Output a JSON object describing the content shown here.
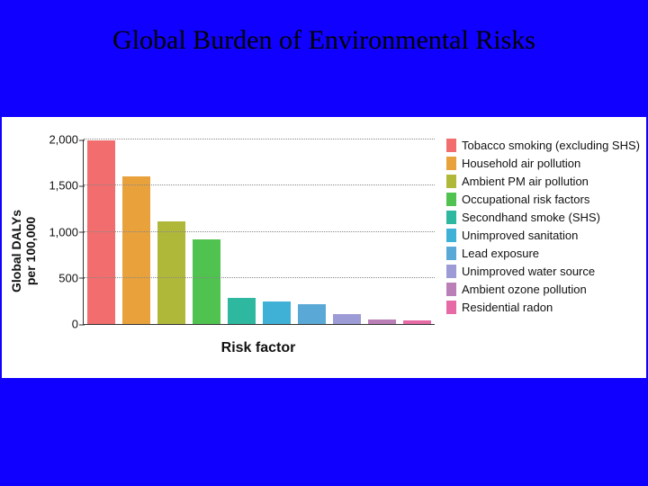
{
  "title": "Global Burden of Environmental Risks",
  "chart": {
    "type": "bar",
    "background_color": "#ffffff",
    "slide_background_color": "#1000ff",
    "ylabel": "Global DALYs\nper 100,000",
    "xlabel": "Risk factor",
    "label_fontsize": 14,
    "ylim": [
      0,
      2000
    ],
    "yticks": [
      0,
      500,
      1000,
      1500,
      2000
    ],
    "ytick_labels": [
      "0",
      "500",
      "1,000",
      "1,500",
      "2,000"
    ],
    "grid_color": "#888888",
    "axis_color": "#333333",
    "bar_width": 0.78,
    "series": [
      {
        "label": "Tobacco smoking (excluding SHS)",
        "value": 1990,
        "color": "#f26d6d"
      },
      {
        "label": "Household air pollution",
        "value": 1600,
        "color": "#e9a13b"
      },
      {
        "label": "Ambient PM air pollution",
        "value": 1110,
        "color": "#b0b83a"
      },
      {
        "label": "Occupational risk factors",
        "value": 920,
        "color": "#4fc24f"
      },
      {
        "label": "Secondhand smoke (SHS)",
        "value": 280,
        "color": "#2fb8a0"
      },
      {
        "label": "Unimproved sanitation",
        "value": 240,
        "color": "#3fb0d6"
      },
      {
        "label": "Lead exposure",
        "value": 210,
        "color": "#5aa8d6"
      },
      {
        "label": "Unimproved water source",
        "value": 110,
        "color": "#9d9bd6"
      },
      {
        "label": "Ambient ozone pollution",
        "value": 50,
        "color": "#bb7fb8"
      },
      {
        "label": "Residential radon",
        "value": 40,
        "color": "#e66aa6"
      }
    ]
  }
}
